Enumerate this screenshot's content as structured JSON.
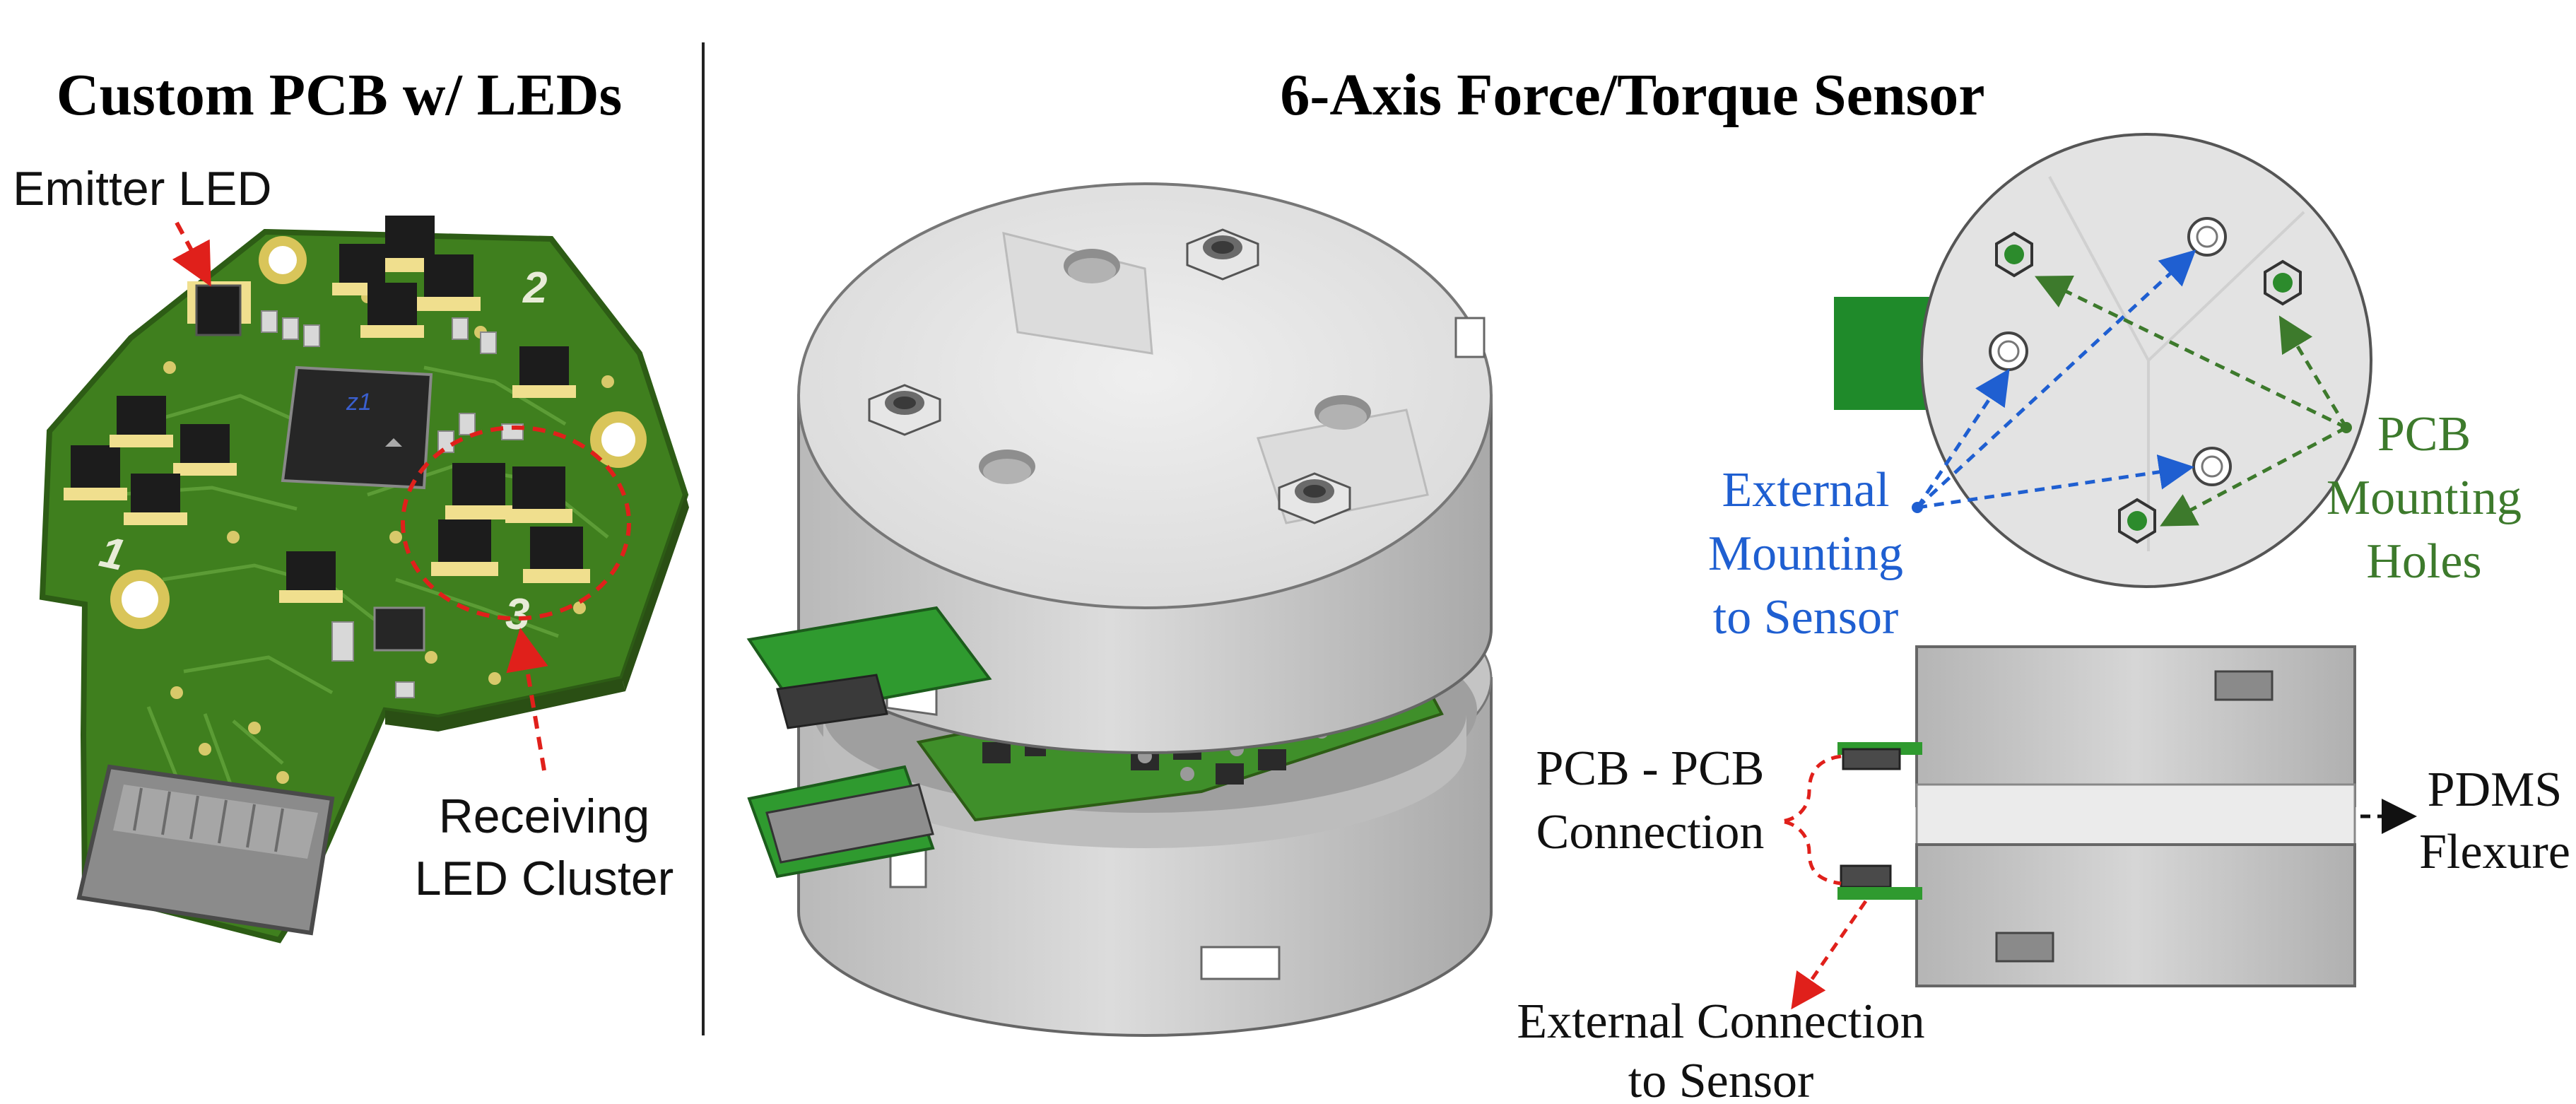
{
  "left_panel": {
    "title": "Custom PCB w/ LEDs",
    "emitter_label": "Emitter LED",
    "receiving_label_line1": "Receiving",
    "receiving_label_line2": "LED Cluster",
    "silk_1": "1",
    "silk_2": "2",
    "silk_3": "3"
  },
  "right_panel": {
    "title": "6-Axis Force/Torque Sensor",
    "external_mount_line1": "External",
    "external_mount_line2": "Mounting",
    "external_mount_line3": "to Sensor",
    "pcb_mount_line1": "PCB",
    "pcb_mount_line2": "Mounting",
    "pcb_mount_line3": "Holes",
    "pcb_connection_line1": "PCB - PCB",
    "pcb_connection_line2": "Connection",
    "pdms_line1": "PDMS",
    "pdms_line2": "Flexure",
    "ext_connection_line1": "External Connection",
    "ext_connection_line2": "to Sensor"
  },
  "colors": {
    "pcb_green": "#3f7f1e",
    "leader_red": "#e0201b",
    "leader_blue": "#1f5fd1",
    "leader_green": "#3d7a2c",
    "housing_gray": "#cfcfcf"
  }
}
